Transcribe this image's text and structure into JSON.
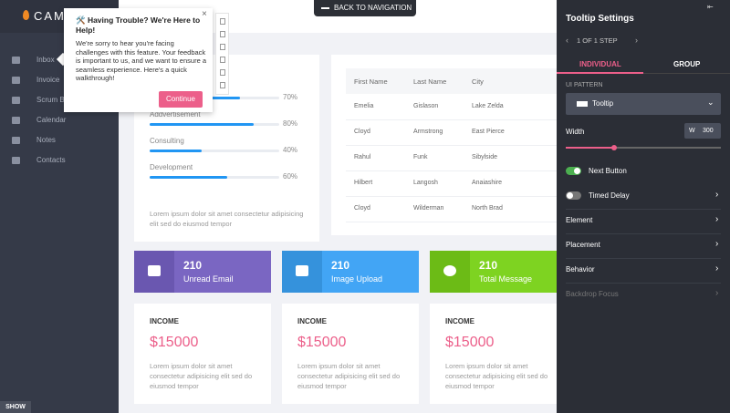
{
  "logo": "CAM",
  "sidebar": {
    "menu": [
      "Inbox",
      "Invoice",
      "Scrum B",
      "Calendar",
      "Notes",
      "Contacts"
    ],
    "show_button": "SHOW"
  },
  "top_button": "BACK TO NAVIGATION",
  "popup": {
    "title": "🛠️ Having Trouble? We're Here to Help!",
    "body": "We're sorry to hear you're facing challenges with this feature. Your feedback is important to us, and we want to ensure a seamless experience. Here's a quick walkthrough!",
    "button": "Continue"
  },
  "skills": {
    "items": [
      {
        "value": 70,
        "value_label": "70%"
      },
      {
        "name": "Addvertisement",
        "value": 80,
        "value_label": "80%"
      },
      {
        "name": "Consulting",
        "value": 40,
        "value_label": "40%"
      },
      {
        "name": "Development",
        "value": 60,
        "value_label": "60%"
      }
    ],
    "note": "Lorem ipsum dolor sit amet consectetur adipisicing elit sed do eiusmod tempor"
  },
  "table": {
    "columns": [
      "First Name",
      "Last Name",
      "City"
    ],
    "rows": [
      [
        "Emelia",
        "Gislason",
        "Lake Zelda"
      ],
      [
        "Cloyd",
        "Armstrong",
        "East Pierce"
      ],
      [
        "Rahul",
        "Funk",
        "Sibylside"
      ],
      [
        "Hilbert",
        "Langosh",
        "Anaiashire"
      ],
      [
        "Cloyd",
        "Wilderman",
        "North Brad"
      ]
    ]
  },
  "stats": [
    {
      "value": 210,
      "label": "Unread Email",
      "color": "#7a66c2",
      "icon_color": "#6a57b0"
    },
    {
      "value": 210,
      "label": "Image Upload",
      "color": "#42a5f5",
      "icon_color": "#3592dc"
    },
    {
      "value": 210,
      "label": "Total Message",
      "color": "#7ed321",
      "icon_color": "#6cbb16"
    }
  ],
  "income": [
    {
      "title": "INCOME",
      "amount": "$15000",
      "text": "Lorem ipsum dolor sit amet consectetur adipisicing elit sed do eiusmod tempor"
    },
    {
      "title": "INCOME",
      "amount": "$15000",
      "text": "Lorem ipsum dolor sit amet consectetur adipisicing elit sed do eiusmod tempor"
    },
    {
      "title": "INCOME",
      "amount": "$15000",
      "text": "Lorem ipsum dolor sit amet consectetur adipisicing elit sed do eiusmod tempor"
    }
  ],
  "settings": {
    "title": "Tooltip Settings",
    "step": "1 OF 1 STEP",
    "tabs": [
      "INDIVIDUAL",
      "GROUP"
    ],
    "pattern_label": "UI PATTERN",
    "pattern": "Tooltip",
    "width_label": "Width",
    "width_prefix": "W",
    "width_value": 300,
    "toggles": [
      {
        "label": "Next Button",
        "on": true
      },
      {
        "label": "Timed Delay",
        "on": false
      }
    ],
    "links": [
      "Element",
      "Placement",
      "Behavior",
      "Backdrop Focus"
    ]
  }
}
